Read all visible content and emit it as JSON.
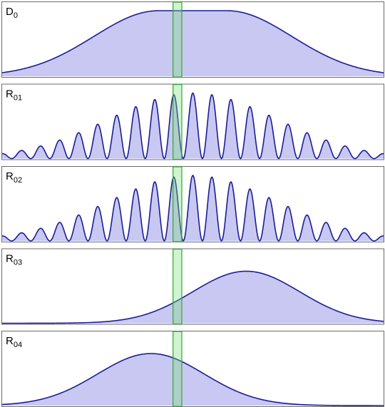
{
  "chart_data": [
    {
      "type": "area",
      "name": "D",
      "subscript": "0",
      "shape": "flat-top",
      "peak_x": 0.5,
      "plateau_half_width": 0.09,
      "sigma": 0.17,
      "amplitude": 0.92
    },
    {
      "type": "area",
      "name": "R",
      "subscript": "01",
      "shape": "oscillating",
      "peak_x": 0.5,
      "envelope_sigma": 0.22,
      "fringes": 20,
      "fringe_phase": 0.0,
      "amplitude": 0.92
    },
    {
      "type": "area",
      "name": "R",
      "subscript": "02",
      "shape": "oscillating",
      "peak_x": 0.5,
      "envelope_sigma": 0.22,
      "fringes": 20,
      "fringe_phase": 3.1416,
      "amplitude": 0.92
    },
    {
      "type": "area",
      "name": "R",
      "subscript": "03",
      "shape": "gaussian",
      "peak_x": 0.64,
      "sigma": 0.14,
      "amplitude": 0.73
    },
    {
      "type": "area",
      "name": "R",
      "subscript": "04",
      "shape": "gaussian",
      "peak_x": 0.39,
      "sigma": 0.14,
      "amplitude": 0.73
    }
  ],
  "highlight_band": {
    "x_start": 0.448,
    "x_end": 0.471,
    "color": "#7edc7e"
  },
  "colors": {
    "fill": "#c8c8f2",
    "line": "#1c1c96",
    "band": "#2fa82f"
  }
}
